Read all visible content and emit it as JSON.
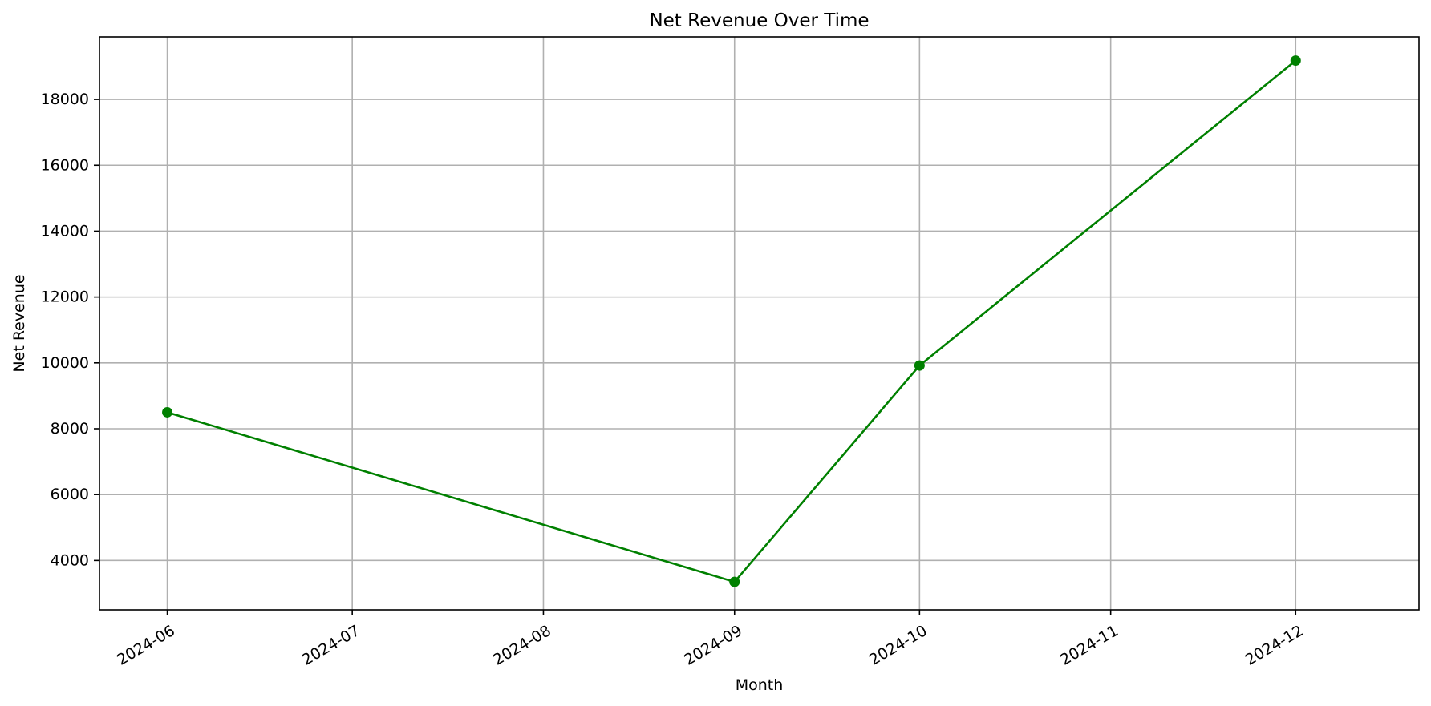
{
  "chart_data": {
    "type": "line",
    "title": "Net Revenue Over Time",
    "xlabel": "Month",
    "ylabel": "Net Revenue",
    "x_tick_labels": [
      "2024-06",
      "2024-07",
      "2024-08",
      "2024-09",
      "2024-10",
      "2024-11",
      "2024-12"
    ],
    "y_ticks": [
      4000,
      6000,
      8000,
      10000,
      12000,
      14000,
      16000,
      18000
    ],
    "xlim": [
      "2024-05-21",
      "2024-12-21"
    ],
    "ylim": [
      2500,
      19900
    ],
    "grid": true,
    "series": [
      {
        "color": "#008000",
        "marker": "circle",
        "points": [
          {
            "x": "2024-06-01",
            "y": 8500
          },
          {
            "x": "2024-09-01",
            "y": 3350
          },
          {
            "x": "2024-10-01",
            "y": 9920
          },
          {
            "x": "2024-12-01",
            "y": 19180
          }
        ]
      }
    ]
  }
}
